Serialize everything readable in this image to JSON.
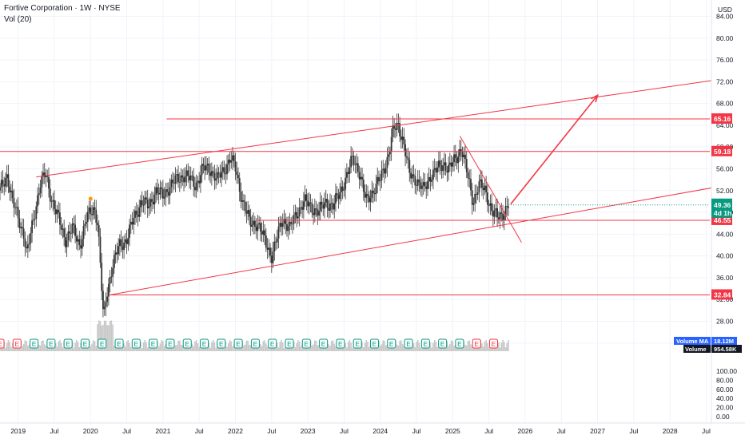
{
  "header": {
    "title": "Fortive Corporation · 1W · NYSE",
    "indicator": "Vol (20)"
  },
  "axis": {
    "currency": "USD"
  },
  "colors": {
    "bull": "#089981",
    "bear": "#f23645",
    "draw": "#f23645",
    "candle": "#333333",
    "grid": "#f0f3fa",
    "volume": "#c8c8c8",
    "earnings_green": "#089981",
    "earnings_red": "#f23645",
    "earnings_purple": "#9c27b0",
    "dividend_blue": "#2962ff"
  },
  "chart_data": {
    "type": "candlestick",
    "symbol": "Fortive Corporation",
    "interval": "1W",
    "exchange": "NYSE",
    "price_axis": {
      "ticks": [
        "84.00",
        "80.00",
        "76.00",
        "72.00",
        "68.00",
        "64.00",
        "60.00",
        "56.00",
        "52.00",
        "48.00",
        "44.00",
        "40.00",
        "36.00",
        "32.00",
        "28.00",
        "24.00"
      ],
      "range": [
        22.5,
        87
      ]
    },
    "volume_axis": {
      "ticks": [
        "100.00",
        "80.00",
        "60.00",
        "40.00",
        "20.00",
        "0.00"
      ]
    },
    "time_axis": [
      "2019",
      "Jul",
      "2020",
      "Jul",
      "2021",
      "Jul",
      "2022",
      "Jul",
      "2023",
      "Jul",
      "2024",
      "Jul",
      "2025",
      "Jul",
      "2026",
      "Jul",
      "2027",
      "Jul",
      "2028",
      "Jul"
    ],
    "price_series": [
      {
        "t": 2018.75,
        "c": 52
      },
      {
        "t": 2018.85,
        "c": 55
      },
      {
        "t": 2018.92,
        "c": 50
      },
      {
        "t": 2019.0,
        "c": 47
      },
      {
        "t": 2019.08,
        "c": 44
      },
      {
        "t": 2019.12,
        "c": 40
      },
      {
        "t": 2019.2,
        "c": 46
      },
      {
        "t": 2019.3,
        "c": 53
      },
      {
        "t": 2019.38,
        "c": 55
      },
      {
        "t": 2019.45,
        "c": 51
      },
      {
        "t": 2019.55,
        "c": 47
      },
      {
        "t": 2019.65,
        "c": 43
      },
      {
        "t": 2019.75,
        "c": 45
      },
      {
        "t": 2019.85,
        "c": 42
      },
      {
        "t": 2019.95,
        "c": 47
      },
      {
        "t": 2020.05,
        "c": 49
      },
      {
        "t": 2020.1,
        "c": 46
      },
      {
        "t": 2020.18,
        "c": 28
      },
      {
        "t": 2020.22,
        "c": 33
      },
      {
        "t": 2020.3,
        "c": 38
      },
      {
        "t": 2020.4,
        "c": 42
      },
      {
        "t": 2020.5,
        "c": 43
      },
      {
        "t": 2020.6,
        "c": 47
      },
      {
        "t": 2020.7,
        "c": 50
      },
      {
        "t": 2020.8,
        "c": 49
      },
      {
        "t": 2020.9,
        "c": 52
      },
      {
        "t": 2021.0,
        "c": 51
      },
      {
        "t": 2021.1,
        "c": 53
      },
      {
        "t": 2021.2,
        "c": 54
      },
      {
        "t": 2021.3,
        "c": 55
      },
      {
        "t": 2021.45,
        "c": 53
      },
      {
        "t": 2021.55,
        "c": 56
      },
      {
        "t": 2021.65,
        "c": 56
      },
      {
        "t": 2021.75,
        "c": 54
      },
      {
        "t": 2021.85,
        "c": 56
      },
      {
        "t": 2021.93,
        "c": 58
      },
      {
        "t": 2022.0,
        "c": 56
      },
      {
        "t": 2022.1,
        "c": 50
      },
      {
        "t": 2022.2,
        "c": 46
      },
      {
        "t": 2022.3,
        "c": 46
      },
      {
        "t": 2022.4,
        "c": 43
      },
      {
        "t": 2022.5,
        "c": 40
      },
      {
        "t": 2022.55,
        "c": 42
      },
      {
        "t": 2022.65,
        "c": 47
      },
      {
        "t": 2022.75,
        "c": 45
      },
      {
        "t": 2022.85,
        "c": 48
      },
      {
        "t": 2022.95,
        "c": 50
      },
      {
        "t": 2023.05,
        "c": 49
      },
      {
        "t": 2023.15,
        "c": 48
      },
      {
        "t": 2023.25,
        "c": 50
      },
      {
        "t": 2023.35,
        "c": 49
      },
      {
        "t": 2023.45,
        "c": 52
      },
      {
        "t": 2023.55,
        "c": 55
      },
      {
        "t": 2023.62,
        "c": 58
      },
      {
        "t": 2023.7,
        "c": 56
      },
      {
        "t": 2023.8,
        "c": 50
      },
      {
        "t": 2023.9,
        "c": 52
      },
      {
        "t": 2024.0,
        "c": 54
      },
      {
        "t": 2024.1,
        "c": 58
      },
      {
        "t": 2024.18,
        "c": 63
      },
      {
        "t": 2024.25,
        "c": 64
      },
      {
        "t": 2024.32,
        "c": 61
      },
      {
        "t": 2024.4,
        "c": 55
      },
      {
        "t": 2024.5,
        "c": 54
      },
      {
        "t": 2024.6,
        "c": 52
      },
      {
        "t": 2024.7,
        "c": 55
      },
      {
        "t": 2024.8,
        "c": 56
      },
      {
        "t": 2024.88,
        "c": 57
      },
      {
        "t": 2024.95,
        "c": 56
      },
      {
        "t": 2025.05,
        "c": 58
      },
      {
        "t": 2025.12,
        "c": 60
      },
      {
        "t": 2025.2,
        "c": 55
      },
      {
        "t": 2025.28,
        "c": 50
      },
      {
        "t": 2025.36,
        "c": 53
      },
      {
        "t": 2025.45,
        "c": 52
      },
      {
        "t": 2025.55,
        "c": 48
      },
      {
        "t": 2025.62,
        "c": 47
      },
      {
        "t": 2025.7,
        "c": 48
      },
      {
        "t": 2025.77,
        "c": 49.36
      }
    ],
    "horizontal_levels": [
      {
        "price": 65.16,
        "label": "65.16"
      },
      {
        "price": 59.18,
        "label": "59.18"
      },
      {
        "price": 46.55,
        "label": "46.55"
      },
      {
        "price": 32.84,
        "label": "32.84"
      }
    ],
    "channel_upper": [
      [
        2019.25,
        54.5
      ],
      [
        2029.0,
        73.0
      ]
    ],
    "channel_lower": [
      [
        2020.25,
        32.8
      ],
      [
        2029.0,
        53.5
      ]
    ],
    "downtrend_line": [
      [
        2025.1,
        62.0
      ],
      [
        2025.95,
        42.5
      ]
    ],
    "projection_arrow": [
      [
        2025.8,
        49.5
      ],
      [
        2027.0,
        69.5
      ]
    ],
    "last_price": {
      "value": 49.36,
      "label": "49.36",
      "countdown": "4d 1h"
    },
    "volume_ma": {
      "label": "Volume MA",
      "value": "18.12M"
    },
    "volume_last": {
      "label": "Volume",
      "value": "954.58K"
    }
  }
}
